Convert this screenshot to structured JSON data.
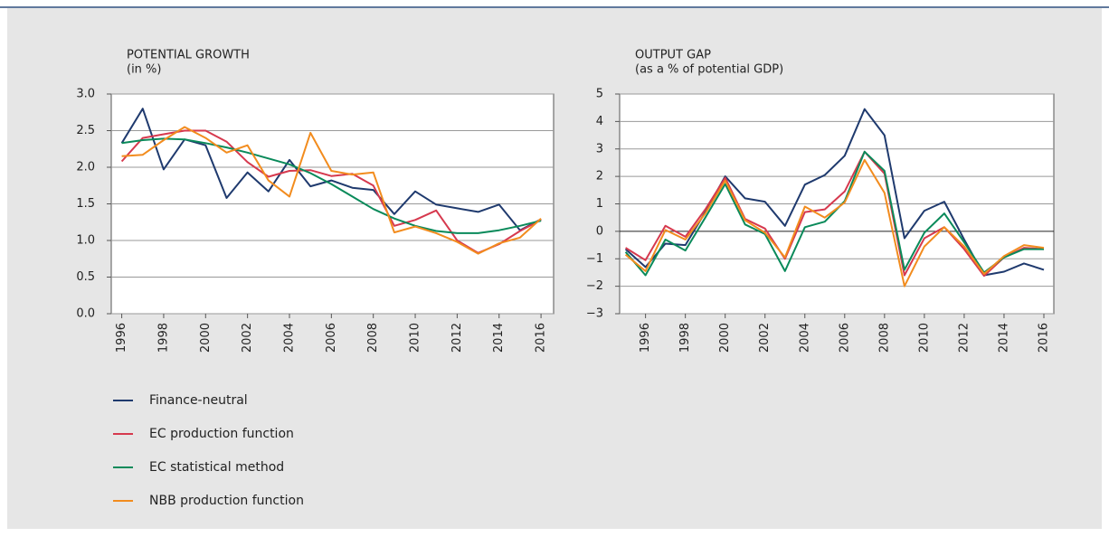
{
  "chart_data": [
    {
      "type": "line",
      "title": "POTENTIAL GROWTH",
      "subtitle": "(in %)",
      "x": [
        1996,
        1997,
        1998,
        1999,
        2000,
        2001,
        2002,
        2003,
        2004,
        2005,
        2006,
        2007,
        2008,
        2009,
        2010,
        2011,
        2012,
        2013,
        2014,
        2015,
        2016
      ],
      "xlim": [
        1995.5,
        2016.6
      ],
      "xticks": [
        1996,
        1998,
        2000,
        2002,
        2004,
        2006,
        2008,
        2010,
        2012,
        2014,
        2016
      ],
      "ylim": [
        0,
        3
      ],
      "yticks": [
        {
          "value": 0,
          "label": "0.0"
        },
        0.5,
        {
          "value": 1,
          "label": "1.0"
        },
        1.5,
        {
          "value": 2,
          "label": "2.0"
        },
        2.5,
        {
          "value": 3,
          "label": "3.0"
        }
      ],
      "grid": true,
      "series": [
        {
          "values": [
            2.33,
            2.8,
            1.97,
            2.38,
            2.3,
            1.58,
            1.93,
            1.67,
            2.1,
            1.74,
            1.82,
            1.72,
            1.69,
            1.36,
            1.67,
            1.49,
            1.44,
            1.39,
            1.49,
            1.14,
            1.29
          ]
        },
        {
          "values": [
            2.08,
            2.4,
            2.45,
            2.5,
            2.5,
            2.35,
            2.07,
            1.87,
            1.95,
            1.96,
            1.88,
            1.91,
            1.75,
            1.2,
            1.28,
            1.41,
            1.0,
            0.83,
            0.95,
            1.13,
            1.28
          ]
        },
        {
          "values": [
            2.33,
            2.37,
            2.39,
            2.38,
            2.33,
            2.27,
            2.2,
            2.12,
            2.04,
            1.92,
            1.77,
            1.6,
            1.43,
            1.3,
            1.2,
            1.13,
            1.1,
            1.1,
            1.14,
            1.2,
            1.27
          ]
        },
        {
          "values": [
            2.15,
            2.17,
            2.37,
            2.55,
            2.4,
            2.2,
            2.3,
            1.82,
            1.6,
            2.47,
            1.95,
            1.9,
            1.93,
            1.11,
            1.19,
            1.1,
            0.98,
            0.82,
            0.96,
            1.04,
            1.3
          ]
        }
      ]
    },
    {
      "type": "line",
      "title": "OUTPUT GAP",
      "subtitle": "(as a % of potential GDP)",
      "x": [
        1995,
        1996,
        1997,
        1998,
        1999,
        2000,
        2001,
        2002,
        2003,
        2004,
        2005,
        2006,
        2007,
        2008,
        2009,
        2010,
        2011,
        2012,
        2013,
        2014,
        2015,
        2016
      ],
      "xlim": [
        1994.7,
        2016.5
      ],
      "xticks": [
        1996,
        1998,
        2000,
        2002,
        2004,
        2006,
        2008,
        2010,
        2012,
        2014,
        2016
      ],
      "ylim": [
        -3,
        5
      ],
      "yticks": [
        {
          "value": -3,
          "label": "−3"
        },
        {
          "value": -2,
          "label": "−2"
        },
        {
          "value": -1,
          "label": "−1"
        },
        0,
        1,
        2,
        3,
        4,
        5
      ],
      "grid": true,
      "series": [
        {
          "values": [
            -0.65,
            -1.3,
            -0.45,
            -0.5,
            0.7,
            2.0,
            1.2,
            1.08,
            0.2,
            1.7,
            2.05,
            2.75,
            4.45,
            3.5,
            -0.25,
            0.75,
            1.08,
            -0.3,
            -1.6,
            -1.47,
            -1.17,
            -1.4
          ]
        },
        {
          "values": [
            -0.6,
            -1.05,
            0.2,
            -0.2,
            0.8,
            1.95,
            0.45,
            0.1,
            -1.0,
            0.7,
            0.8,
            1.45,
            2.9,
            2.1,
            -1.6,
            -0.25,
            0.15,
            -0.65,
            -1.62,
            -0.95,
            -0.6,
            -0.65
          ]
        },
        {
          "values": [
            -0.75,
            -1.6,
            -0.3,
            -0.7,
            0.5,
            1.72,
            0.25,
            -0.1,
            -1.45,
            0.15,
            0.35,
            1.1,
            2.9,
            2.2,
            -1.4,
            -0.05,
            0.65,
            -0.4,
            -1.5,
            -0.95,
            -0.65,
            -0.65
          ]
        },
        {
          "values": [
            -0.85,
            -1.45,
            0.05,
            -0.3,
            0.65,
            1.85,
            0.4,
            -0.05,
            -0.95,
            0.9,
            0.5,
            1.05,
            2.6,
            1.4,
            -2.0,
            -0.55,
            0.15,
            -0.55,
            -1.55,
            -0.9,
            -0.5,
            -0.6
          ]
        }
      ]
    }
  ],
  "legend": [
    {
      "name": "Finance-neutral",
      "color": "#1f3a6e"
    },
    {
      "name": "EC production function",
      "color": "#d6394e"
    },
    {
      "name": "EC statistical method",
      "color": "#0a8a5a"
    },
    {
      "name": "NBB production function",
      "color": "#f28c1e"
    }
  ]
}
